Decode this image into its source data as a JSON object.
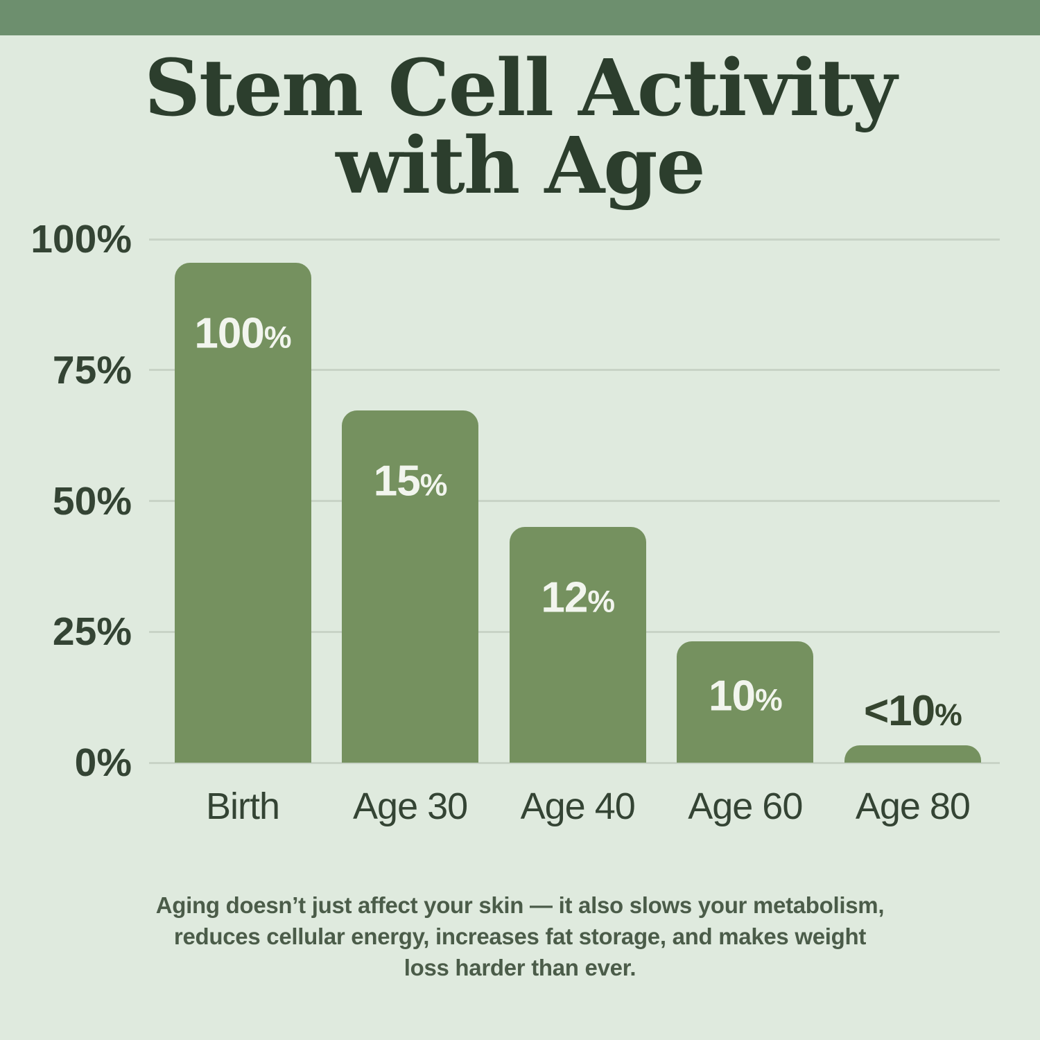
{
  "title": {
    "line1": "Stem Cell Activity",
    "line2": "with Age"
  },
  "chart_data": {
    "type": "bar",
    "title": "Stem Cell Activity with Age",
    "categories": [
      "Birth",
      "Age 30",
      "Age 40",
      "Age 60",
      "Age 80"
    ],
    "values": [
      100,
      15,
      12,
      10,
      9
    ],
    "value_labels": [
      "100%",
      "15%",
      "12%",
      "10%",
      "<10%"
    ],
    "value_label_placement": [
      "inside",
      "inside",
      "inside",
      "inside",
      "above"
    ],
    "visual_bar_height_pct": [
      95.5,
      67.3,
      45.0,
      23.2,
      3.3
    ],
    "y_ticks": [
      {
        "label": "100%",
        "value": 100
      },
      {
        "label": "75%",
        "value": 75
      },
      {
        "label": "50%",
        "value": 50
      },
      {
        "label": "25%",
        "value": 25
      },
      {
        "label": "0%",
        "value": 0
      }
    ],
    "ylim": [
      0,
      100
    ],
    "grid": true,
    "legend": false
  },
  "caption": {
    "line1": "Aging doesn’t just affect your skin — it also slows your metabolism,",
    "line2": "reduces cellular energy, increases fat storage, and makes weight",
    "line3": "loss harder than ever."
  },
  "colors": {
    "background": "#dfeade",
    "top_bar": "#6d8f6e",
    "bar_fill": "#75915f",
    "title_text": "#2c3e2d",
    "axis_text": "#344434",
    "bar_value_text": "#f2f5ee",
    "above_value_text": "#35452f",
    "gridline": "#c8d3c6",
    "caption_text": "#4b5c49"
  }
}
